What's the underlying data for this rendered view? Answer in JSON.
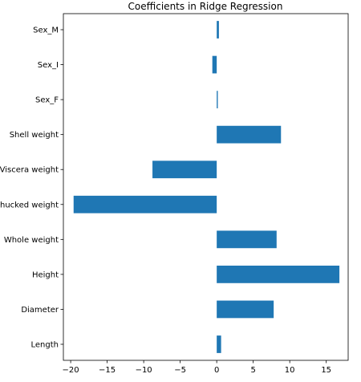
{
  "chart_data": {
    "type": "bar",
    "orientation": "horizontal",
    "title": "Coefficients in Ridge Regression",
    "xlabel": "",
    "ylabel": "",
    "categories": [
      "Length",
      "Diameter",
      "Height",
      "Whole weight",
      "Shucked weight",
      "Viscera weight",
      "Shell weight",
      "Sex_F",
      "Sex_I",
      "Sex_M"
    ],
    "values": [
      0.6,
      7.8,
      16.8,
      8.2,
      -19.6,
      -8.8,
      8.8,
      0.15,
      -0.6,
      0.3
    ],
    "xlim": [
      -21.0,
      18.0
    ],
    "xticks": [
      -20,
      -15,
      -10,
      -5,
      0,
      5,
      10,
      15
    ],
    "grid": false,
    "legend": "none",
    "bar_color": "#1f77b4"
  }
}
